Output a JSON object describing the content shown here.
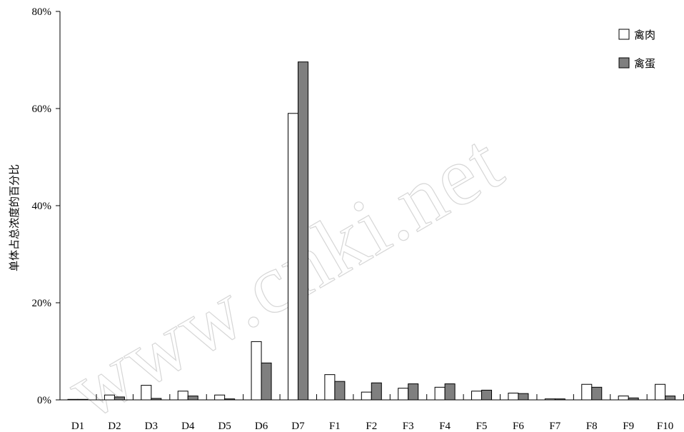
{
  "chart_data": {
    "type": "bar",
    "title": "",
    "xlabel": "",
    "ylabel": "单体占总浓度的百分比",
    "ylim": [
      0,
      80
    ],
    "yticks": [
      "0%",
      "20%",
      "40%",
      "60%",
      "80%"
    ],
    "ytick_values": [
      0,
      20,
      40,
      60,
      80
    ],
    "categories": [
      "D1",
      "D2",
      "D3",
      "D4",
      "D5",
      "D6",
      "D7",
      "F1",
      "F2",
      "F3",
      "F4",
      "F5",
      "F6",
      "F7",
      "F8",
      "F9",
      "F10"
    ],
    "series": [
      {
        "name": "禽肉",
        "color": "#ffffff",
        "values": [
          0.1,
          1.0,
          3.0,
          1.8,
          1.0,
          12.0,
          59.0,
          5.2,
          1.6,
          2.4,
          2.6,
          1.8,
          1.4,
          0.2,
          3.2,
          0.8,
          3.2
        ]
      },
      {
        "name": "禽蛋",
        "color": "#7f7f7f",
        "values": [
          0.1,
          0.6,
          0.3,
          0.8,
          0.2,
          7.6,
          69.6,
          3.8,
          3.5,
          3.3,
          3.3,
          2.0,
          1.3,
          0.2,
          2.6,
          0.4,
          0.8
        ]
      }
    ],
    "legend_position": "top-right",
    "grid": false
  },
  "watermark": "www.cnki.net"
}
